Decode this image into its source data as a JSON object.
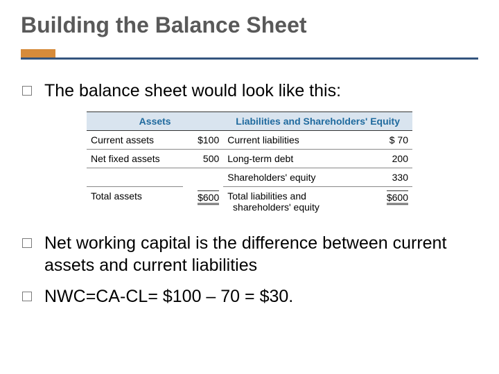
{
  "title": "Building the Balance Sheet",
  "accent_orange": "#d68b3a",
  "accent_blue": "#33547e",
  "bullets": {
    "b1": "The balance sheet would look like this:",
    "b2": "Net working capital is the difference between current assets and current liabilities",
    "b3": "NWC=CA-CL= $100 – 70 = $30."
  },
  "table": {
    "head_left": "Assets",
    "head_right": "Liabilities and Shareholders' Equity",
    "rows": [
      {
        "l_label": "Current assets",
        "l_val": "$100",
        "r_label": "Current liabilities",
        "r_val": "$  70"
      },
      {
        "l_label": "Net fixed assets",
        "l_val": "500",
        "r_label": "Long-term debt",
        "r_val": "200"
      },
      {
        "l_label": "",
        "l_val": "",
        "r_label": "Shareholders' equity",
        "r_val": "330"
      }
    ],
    "totals": {
      "l_label": "Total assets",
      "l_val": "$600",
      "r_label1": "Total liabilities and",
      "r_label2": "shareholders' equity",
      "r_val": "$600"
    }
  }
}
